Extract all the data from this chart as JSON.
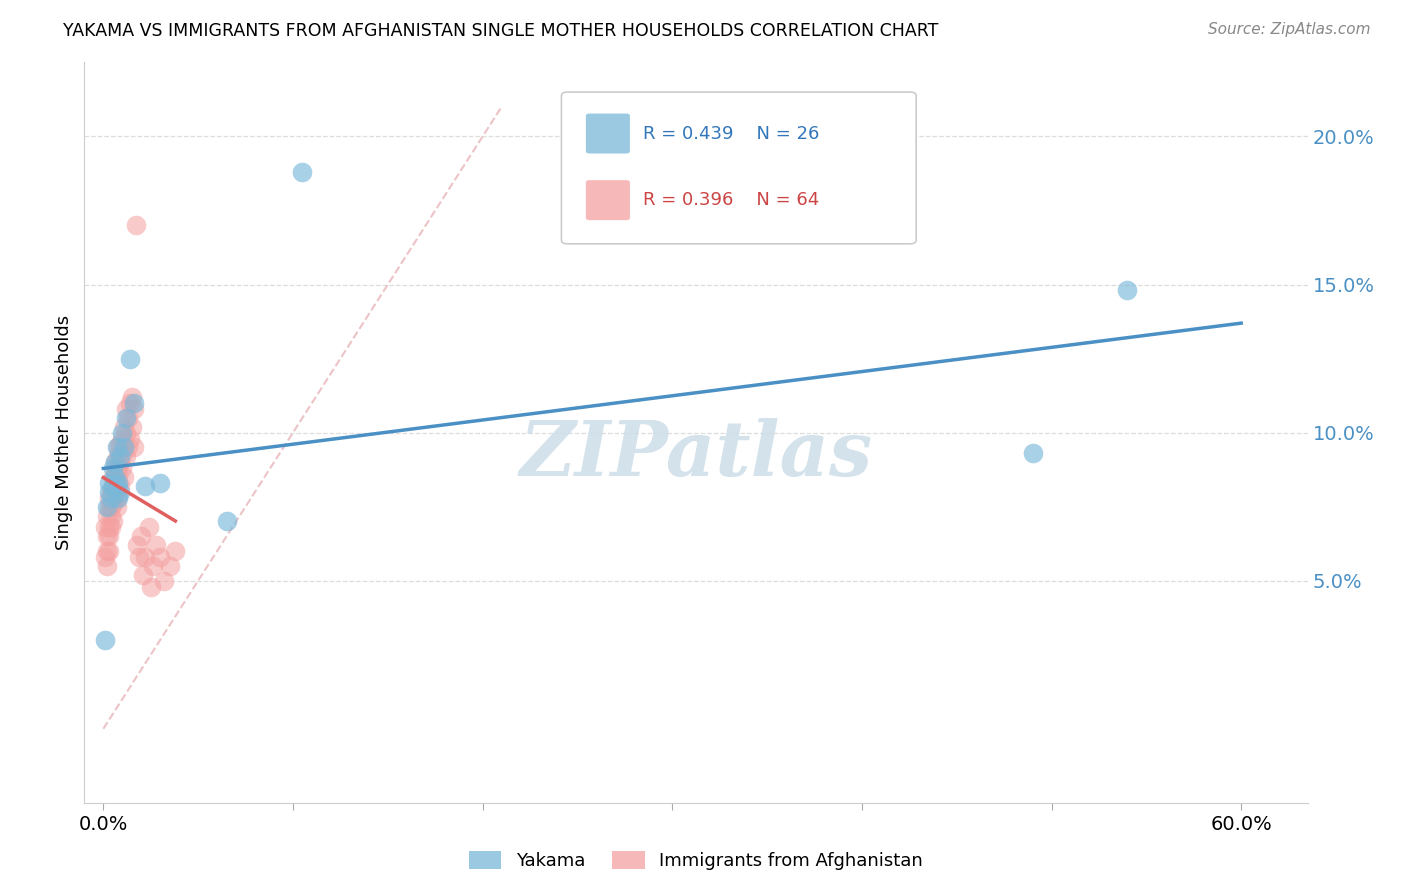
{
  "title": "YAKAMA VS IMMIGRANTS FROM AFGHANISTAN SINGLE MOTHER HOUSEHOLDS CORRELATION CHART",
  "source": "Source: ZipAtlas.com",
  "ylabel": "Single Mother Households",
  "y_ticks": [
    0.05,
    0.1,
    0.15,
    0.2
  ],
  "y_tick_labels": [
    "5.0%",
    "10.0%",
    "15.0%",
    "20.0%"
  ],
  "x_tick_positions": [
    0.0,
    0.1,
    0.2,
    0.3,
    0.4,
    0.5,
    0.6
  ],
  "x_tick_labels": [
    "0.0%",
    "",
    "",
    "",
    "",
    "",
    "60.0%"
  ],
  "xlim": [
    -0.01,
    0.635
  ],
  "ylim": [
    -0.025,
    0.225
  ],
  "R1": 0.439,
  "N1": 26,
  "R2": 0.396,
  "N2": 64,
  "color1": "#7ab8d9",
  "color2": "#f4a0a0",
  "trendline1_color": "#4a90c4",
  "trendline2_color": "#e06060",
  "diagonal_color": "#e8b4b8",
  "watermark": "ZIPatlas",
  "watermark_color": "#ccdde8",
  "legend_label1": "Yakama",
  "legend_label2": "Immigrants from Afghanistan",
  "yakama_x": [
    0.001,
    0.002,
    0.003,
    0.003,
    0.004,
    0.005,
    0.005,
    0.006,
    0.006,
    0.007,
    0.007,
    0.008,
    0.008,
    0.009,
    0.009,
    0.01,
    0.011,
    0.012,
    0.014,
    0.016,
    0.022,
    0.03,
    0.065,
    0.105,
    0.49,
    0.54
  ],
  "yakama_y": [
    0.03,
    0.075,
    0.08,
    0.083,
    0.078,
    0.082,
    0.088,
    0.085,
    0.09,
    0.082,
    0.095,
    0.083,
    0.078,
    0.08,
    0.092,
    0.1,
    0.095,
    0.105,
    0.125,
    0.11,
    0.082,
    0.083,
    0.07,
    0.188,
    0.093,
    0.148
  ],
  "afghan_x": [
    0.001,
    0.001,
    0.002,
    0.002,
    0.002,
    0.002,
    0.003,
    0.003,
    0.003,
    0.003,
    0.003,
    0.004,
    0.004,
    0.004,
    0.004,
    0.005,
    0.005,
    0.005,
    0.005,
    0.006,
    0.006,
    0.006,
    0.007,
    0.007,
    0.007,
    0.007,
    0.008,
    0.008,
    0.008,
    0.008,
    0.009,
    0.009,
    0.009,
    0.01,
    0.01,
    0.01,
    0.011,
    0.011,
    0.011,
    0.012,
    0.012,
    0.012,
    0.013,
    0.013,
    0.014,
    0.014,
    0.015,
    0.015,
    0.016,
    0.016,
    0.017,
    0.018,
    0.019,
    0.02,
    0.021,
    0.022,
    0.024,
    0.025,
    0.026,
    0.028,
    0.03,
    0.032,
    0.035,
    0.038
  ],
  "afghan_y": [
    0.068,
    0.058,
    0.072,
    0.06,
    0.055,
    0.065,
    0.075,
    0.068,
    0.078,
    0.065,
    0.06,
    0.08,
    0.072,
    0.075,
    0.068,
    0.082,
    0.076,
    0.07,
    0.085,
    0.08,
    0.09,
    0.086,
    0.078,
    0.082,
    0.088,
    0.075,
    0.092,
    0.088,
    0.095,
    0.085,
    0.09,
    0.096,
    0.082,
    0.088,
    0.092,
    0.098,
    0.095,
    0.102,
    0.085,
    0.1,
    0.108,
    0.092,
    0.105,
    0.095,
    0.11,
    0.098,
    0.102,
    0.112,
    0.095,
    0.108,
    0.17,
    0.062,
    0.058,
    0.065,
    0.052,
    0.058,
    0.068,
    0.048,
    0.055,
    0.062,
    0.058,
    0.05,
    0.055,
    0.06
  ]
}
